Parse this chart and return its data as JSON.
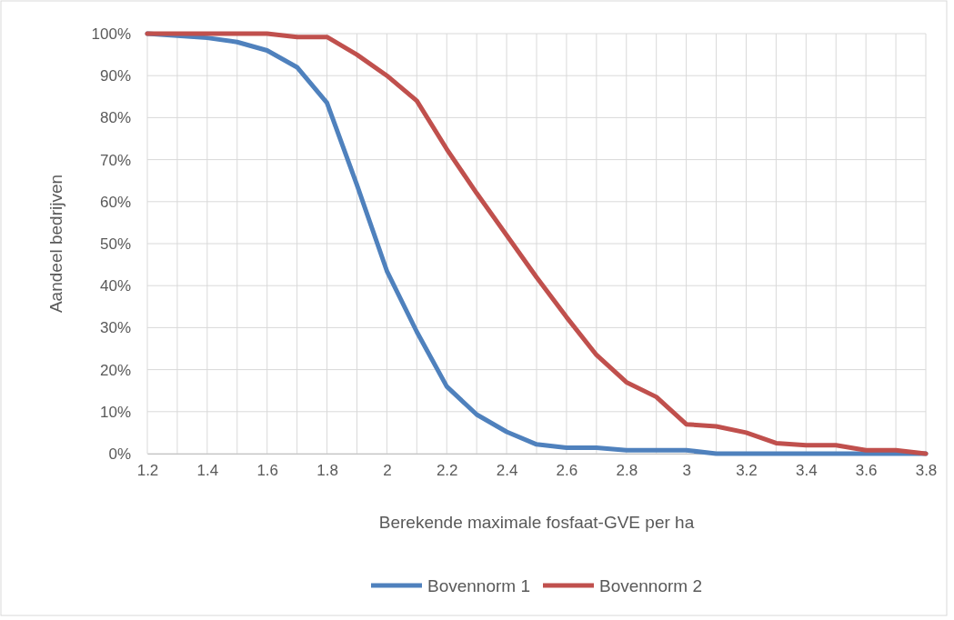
{
  "chart_data": {
    "type": "line",
    "xlabel": "Berekende maximale fosfaat-GVE per ha",
    "ylabel": "Aandeel bedrijven",
    "x": [
      1.2,
      1.3,
      1.4,
      1.5,
      1.6,
      1.7,
      1.8,
      1.9,
      2.0,
      2.1,
      2.2,
      2.3,
      2.4,
      2.5,
      2.6,
      2.7,
      2.8,
      2.9,
      3.0,
      3.1,
      3.2,
      3.3,
      3.4,
      3.5,
      3.6,
      3.7,
      3.8
    ],
    "series": [
      {
        "name": "Bovennorm 1",
        "color": "#4f81bd",
        "values": [
          100,
          99.5,
          99,
          98,
          96,
          92,
          83.5,
          64,
          43.5,
          29,
          16,
          9.3,
          5.2,
          2.2,
          1.4,
          1.4,
          0.8,
          0.8,
          0.8,
          0,
          0,
          0,
          0,
          0,
          0,
          0,
          0
        ]
      },
      {
        "name": "Bovennorm 2",
        "color": "#c0504d",
        "values": [
          100,
          100,
          100,
          100,
          100,
          99.2,
          99.2,
          95,
          90,
          84,
          72.5,
          62,
          52,
          42,
          32.5,
          23.5,
          17,
          13.5,
          7,
          6.5,
          5,
          2.5,
          2,
          2,
          0.8,
          0.8,
          0
        ]
      }
    ],
    "xlim": [
      1.2,
      3.8
    ],
    "xticks": [
      1.2,
      {
        "value": 1.3,
        "label": null
      },
      1.4,
      {
        "value": 1.5,
        "label": null
      },
      1.6,
      {
        "value": 1.7,
        "label": null
      },
      1.8,
      {
        "value": 1.9,
        "label": null
      },
      2,
      {
        "value": 2.1,
        "label": null
      },
      2.2,
      {
        "value": 2.3,
        "label": null
      },
      2.4,
      {
        "value": 2.5,
        "label": null
      },
      2.6,
      {
        "value": 2.7,
        "label": null
      },
      2.8,
      {
        "value": 2.9,
        "label": null
      },
      3,
      {
        "value": 3.1,
        "label": null
      },
      3.2,
      {
        "value": 3.3,
        "label": null
      },
      3.4,
      {
        "value": 3.5,
        "label": null
      },
      3.6,
      {
        "value": 3.7,
        "label": null
      },
      3.8
    ],
    "ylim": [
      0,
      100
    ],
    "yticks": [
      {
        "value": 0,
        "label": "0%"
      },
      {
        "value": 10,
        "label": "10%"
      },
      {
        "value": 20,
        "label": "20%"
      },
      {
        "value": 30,
        "label": "30%"
      },
      {
        "value": 40,
        "label": "40%"
      },
      {
        "value": 50,
        "label": "50%"
      },
      {
        "value": 60,
        "label": "60%"
      },
      {
        "value": 70,
        "label": "70%"
      },
      {
        "value": 80,
        "label": "80%"
      },
      {
        "value": 90,
        "label": "90%"
      },
      {
        "value": 100,
        "label": "100%"
      }
    ],
    "grid": true,
    "legend": "bottom",
    "marker": "none",
    "line_style": "solid"
  }
}
